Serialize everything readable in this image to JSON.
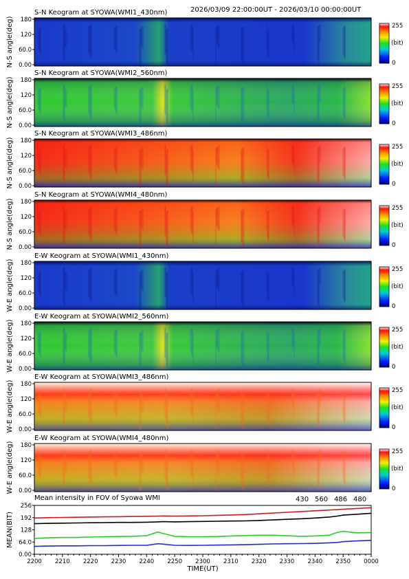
{
  "header": {
    "time_range": "2026/03/09 22:00:00UT - 2026/03/10 00:00:00UT"
  },
  "panel_colors": {
    "blue": "#1a2fc8",
    "green": "#1fd21f",
    "orange": "#f5a51e",
    "red": "#e81a1a",
    "white": "#ffffff"
  },
  "colorbar": {
    "max_label": "255",
    "unit_label": "(bit)",
    "min_label": "0"
  },
  "panels": [
    {
      "title": "S-N Keogram at SYOWA(WMI1_430nm)",
      "ylabel": "N-S angle(deg)",
      "ticks": [
        "180",
        "120",
        "60.0",
        "0.00"
      ],
      "scheme": "blue"
    },
    {
      "title": "S-N Keogram at SYOWA(WMI2_560nm)",
      "ylabel": "N-S angle(deg)",
      "ticks": [
        "180",
        "120",
        "60.0",
        "0.00"
      ],
      "scheme": "green"
    },
    {
      "title": "S-N Keogram at SYOWA(WMI3_486nm)",
      "ylabel": "N-S angle(deg)",
      "ticks": [
        "180",
        "120",
        "60.0",
        "0.00"
      ],
      "scheme": "red"
    },
    {
      "title": "S-N Keogram at SYOWA(WMI4_480nm)",
      "ylabel": "N-S angle(deg)",
      "ticks": [
        "180",
        "120",
        "60.0",
        "0.00"
      ],
      "scheme": "red"
    },
    {
      "title": "E-W Keogram at SYOWA(WMI1_430nm)",
      "ylabel": "W-E angle(deg)",
      "ticks": [
        "180",
        "120",
        "60.0",
        "0.00"
      ],
      "scheme": "blue"
    },
    {
      "title": "E-W Keogram at SYOWA(WMI2_560nm)",
      "ylabel": "W-E angle(deg)",
      "ticks": [
        "180",
        "120",
        "60.0",
        "0.00"
      ],
      "scheme": "green"
    },
    {
      "title": "E-W Keogram at SYOWA(WMI3_486nm)",
      "ylabel": "W-E angle(deg)",
      "ticks": [
        "180",
        "120",
        "60.0",
        "0.00"
      ],
      "scheme": "white"
    },
    {
      "title": "E-W Keogram at SYOWA(WMI4_480nm)",
      "ylabel": "W-E angle(deg)",
      "ticks": [
        "180",
        "120",
        "60.0",
        "0.00"
      ],
      "scheme": "white"
    }
  ],
  "chart_data": {
    "type": "line",
    "title": "Mean intensity in FOV of Syowa WMI",
    "xlabel": "TIME(UT)",
    "ylabel": "MEAN(BIT)",
    "x_tick_labels": [
      "2200",
      "2210",
      "2220",
      "2230",
      "2240",
      "2250",
      "2300",
      "2310",
      "2320",
      "2330",
      "2340",
      "2350",
      "0000"
    ],
    "y_tick_labels": [
      "256",
      "192",
      "128",
      "64.0",
      "0.00"
    ],
    "xlim_minutes": [
      0,
      120
    ],
    "ylim": [
      0,
      256
    ],
    "x": [
      0,
      5,
      10,
      15,
      20,
      25,
      30,
      35,
      40,
      44,
      46,
      50,
      55,
      60,
      65,
      70,
      75,
      80,
      85,
      90,
      95,
      100,
      105,
      108,
      110,
      115,
      120
    ],
    "series": [
      {
        "name": "430",
        "color": "#1a2fc8",
        "values": [
          41,
          43,
          44,
          44,
          45,
          45,
          46,
          47,
          47,
          55,
          53,
          47,
          46,
          47,
          48,
          49,
          50,
          52,
          54,
          55,
          56,
          57,
          60,
          62,
          66,
          70,
          73
        ]
      },
      {
        "name": "560",
        "color": "#1fd21f",
        "values": [
          83,
          86,
          88,
          88,
          90,
          92,
          93,
          94,
          97,
          117,
          108,
          94,
          92,
          92,
          93,
          96,
          98,
          100,
          100,
          97,
          94,
          96,
          100,
          115,
          120,
          112,
          114
        ]
      },
      {
        "name": "486",
        "color": "#cc1a1a",
        "values": [
          190,
          192,
          193,
          194,
          195,
          196,
          197,
          198,
          199,
          200,
          201,
          200,
          201,
          202,
          204,
          206,
          208,
          212,
          216,
          220,
          224,
          228,
          232,
          234,
          236,
          240,
          244
        ]
      },
      {
        "name": "480",
        "color": "#000000",
        "values": [
          160,
          162,
          163,
          164,
          165,
          166,
          167,
          167,
          168,
          170,
          171,
          170,
          171,
          172,
          173,
          174,
          175,
          177,
          180,
          183,
          186,
          190,
          195,
          200,
          205,
          210,
          215
        ]
      }
    ]
  }
}
